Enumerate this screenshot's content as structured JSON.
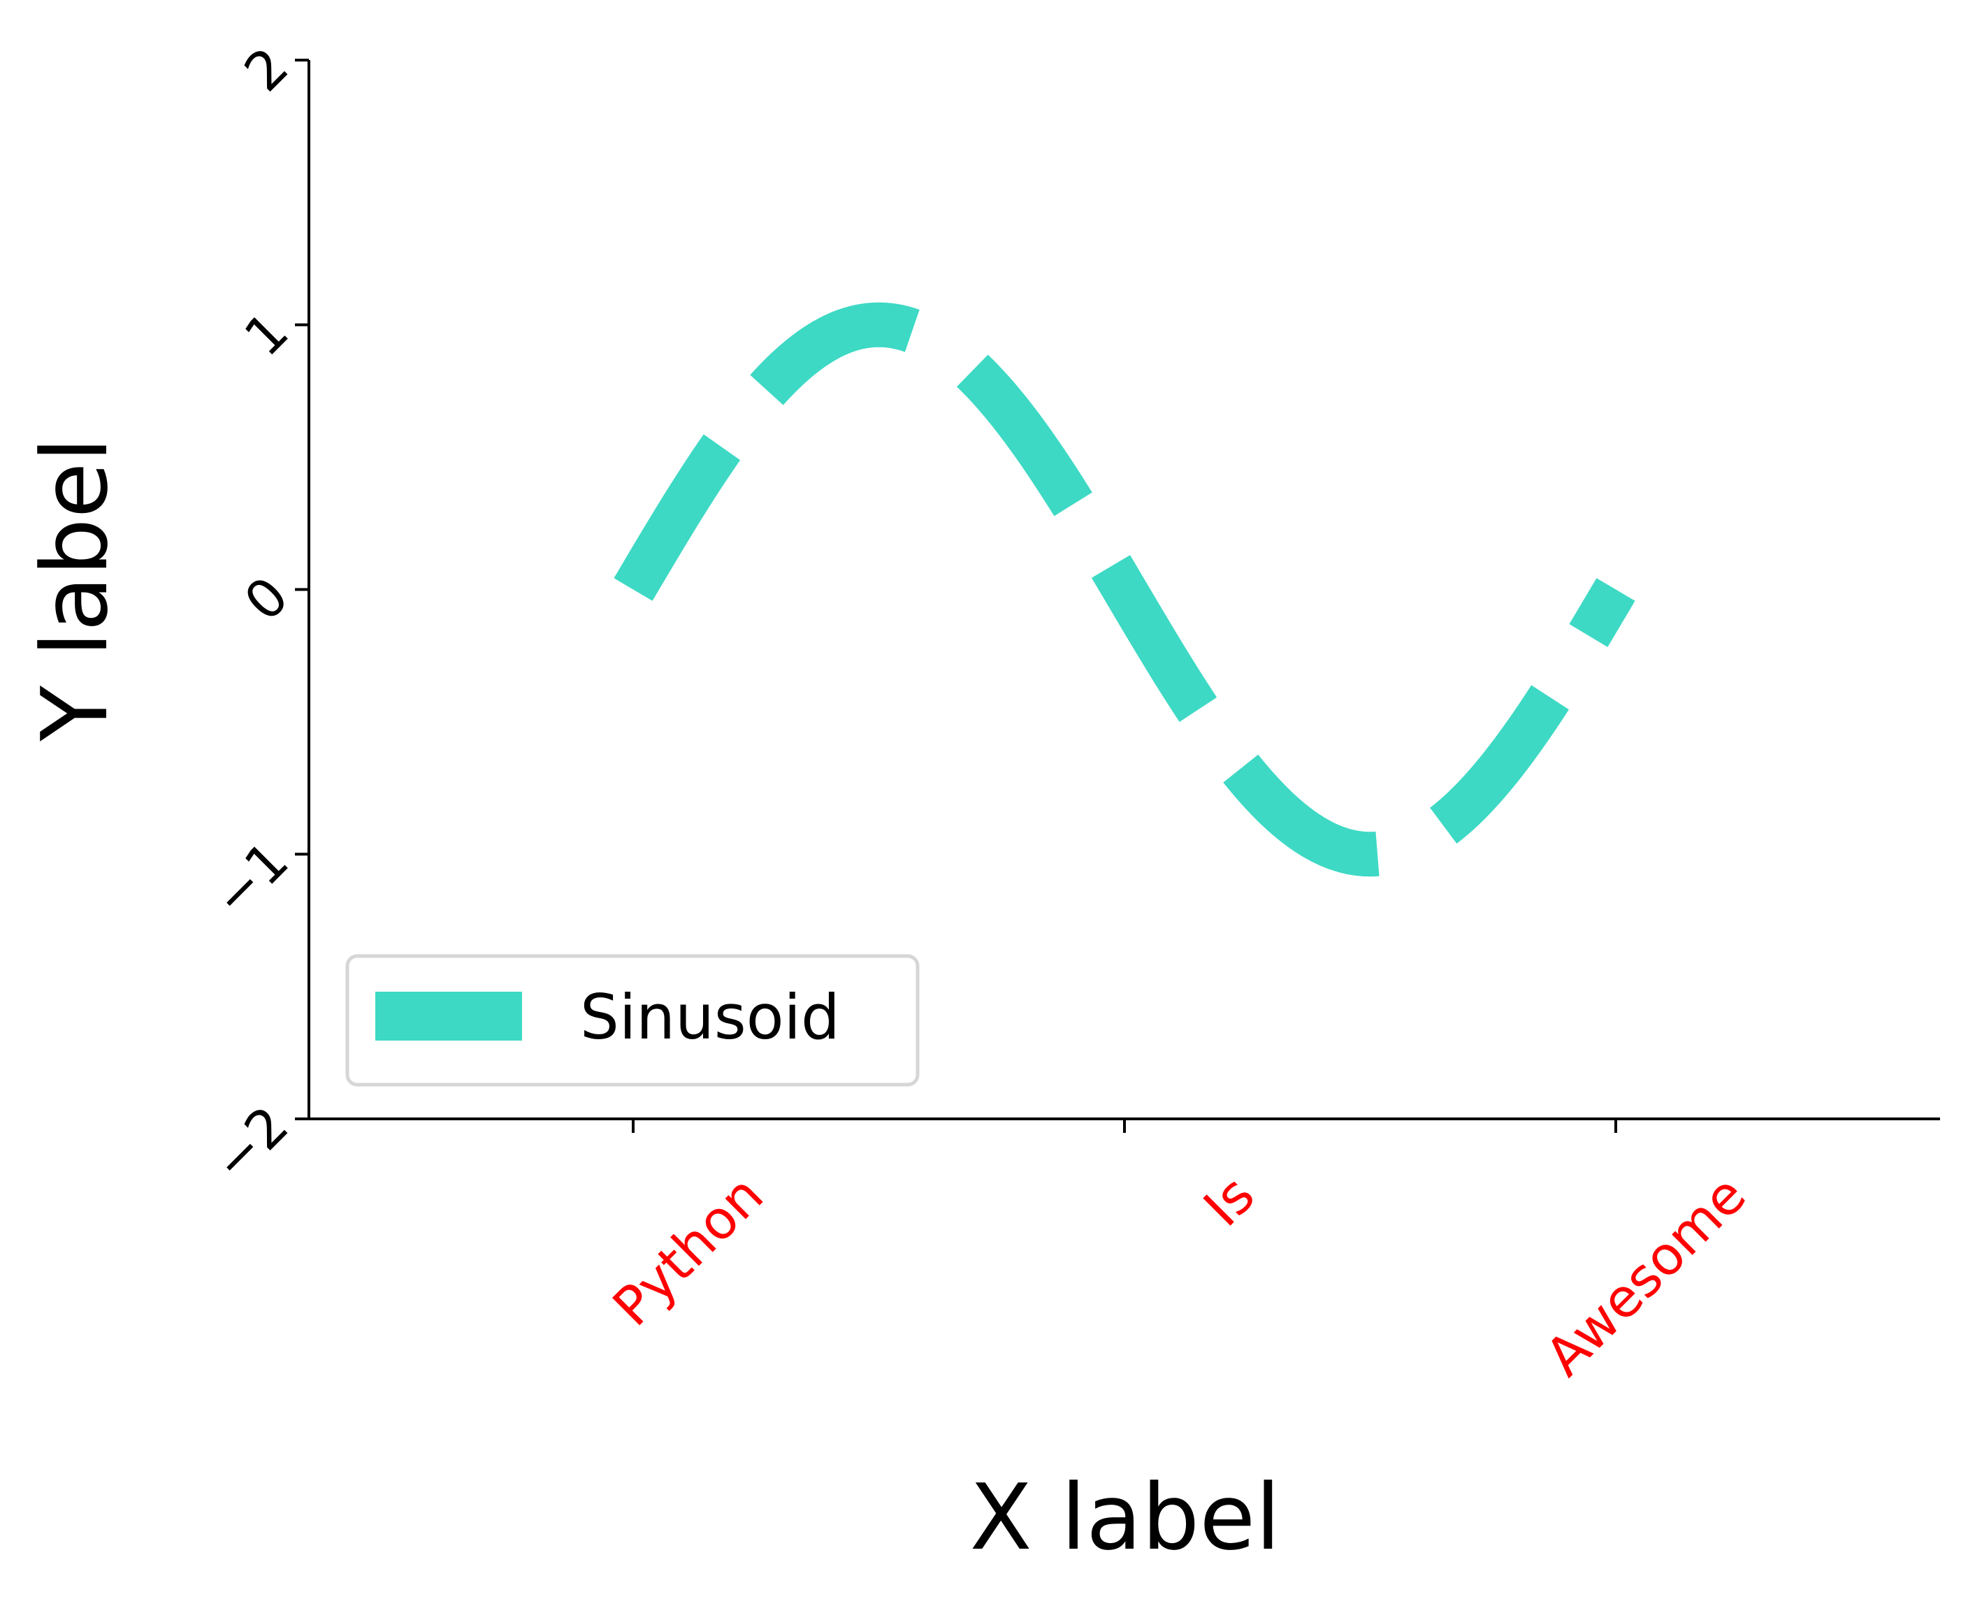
{
  "chart_data": {
    "type": "line",
    "title": "",
    "xlabel": "X label",
    "ylabel": "Y label",
    "xlim": [
      -0.66,
      2.66
    ],
    "ylim": [
      -2,
      2
    ],
    "categories": [
      "Python",
      "Is",
      "Awesome"
    ],
    "category_positions": [
      0,
      1,
      2
    ],
    "xtick_label_color": "#ff0000",
    "ytick_values": [
      -2,
      -1,
      0,
      1,
      2
    ],
    "ytick_labels": [
      "−2",
      "−1",
      "0",
      "1",
      "2"
    ],
    "grid": false,
    "legend_position": "lower-left",
    "series": [
      {
        "name": "Sinusoid",
        "color": "#3dd9c4",
        "line_style": "dashed",
        "function": "sin",
        "x_range": [
          0,
          2
        ],
        "x": [
          0,
          0.25,
          0.5,
          0.75,
          1.0,
          1.25,
          1.5,
          1.75,
          2.0
        ],
        "y": [
          0,
          0.707,
          1,
          0.707,
          0,
          -0.707,
          -1,
          -0.707,
          0
        ]
      }
    ]
  }
}
